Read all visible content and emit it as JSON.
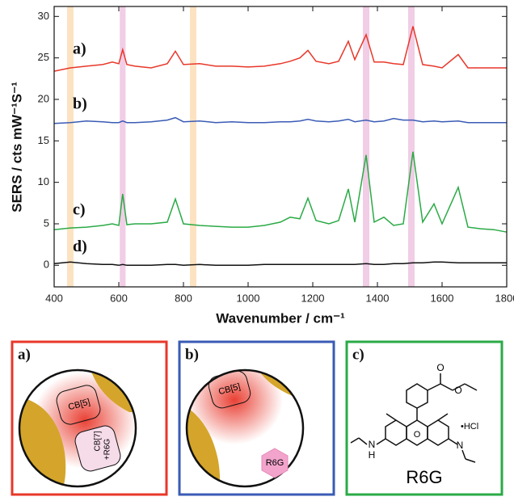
{
  "chart_data": {
    "type": "line",
    "x_label": "Wavenumber / cm⁻¹",
    "y_label": "SERS / cts mW⁻¹S⁻¹",
    "xlim": [
      400,
      1800
    ],
    "xticks": [
      400,
      600,
      800,
      1000,
      1200,
      1400,
      1600,
      1800
    ],
    "ylim": [
      -2.6,
      31.2
    ],
    "yticks": [
      0,
      5,
      10,
      15,
      20,
      25,
      30
    ],
    "bands": [
      {
        "range": [
          440,
          460
        ],
        "color": "#fbe3c2"
      },
      {
        "range": [
          820,
          840
        ],
        "color": "#fbe3c2"
      },
      {
        "range": [
          603,
          621
        ],
        "color": "#f1cde6"
      },
      {
        "range": [
          1355,
          1375
        ],
        "color": "#f1cde6"
      },
      {
        "range": [
          1495,
          1515
        ],
        "color": "#f1cde6"
      }
    ],
    "x": [
      400,
      450,
      500,
      550,
      580,
      600,
      612,
      625,
      650,
      700,
      750,
      775,
      800,
      850,
      900,
      950,
      1000,
      1050,
      1100,
      1130,
      1160,
      1185,
      1210,
      1250,
      1280,
      1310,
      1330,
      1365,
      1390,
      1420,
      1450,
      1480,
      1510,
      1540,
      1575,
      1600,
      1650,
      1680,
      1720,
      1760,
      1800
    ],
    "series": [
      {
        "name": "a)",
        "color": "#e8372a",
        "values": [
          23.4,
          23.8,
          24.0,
          24.2,
          24.5,
          24.3,
          26.0,
          24.2,
          24.0,
          23.8,
          24.3,
          25.8,
          24.2,
          24.3,
          24.0,
          24.0,
          23.9,
          24.0,
          24.3,
          24.6,
          25.0,
          25.9,
          24.6,
          24.3,
          24.6,
          27.0,
          24.8,
          27.8,
          24.5,
          24.5,
          24.3,
          24.2,
          28.8,
          24.2,
          24.0,
          23.8,
          25.4,
          23.8,
          23.8,
          23.8,
          23.8
        ]
      },
      {
        "name": "b)",
        "color": "#3a5bb5",
        "values": [
          17.1,
          17.2,
          17.4,
          17.3,
          17.2,
          17.2,
          17.4,
          17.2,
          17.2,
          17.3,
          17.5,
          17.8,
          17.3,
          17.4,
          17.2,
          17.3,
          17.2,
          17.2,
          17.3,
          17.3,
          17.4,
          17.6,
          17.4,
          17.3,
          17.4,
          17.6,
          17.3,
          17.5,
          17.3,
          17.4,
          17.7,
          17.5,
          17.5,
          17.3,
          17.4,
          17.3,
          17.4,
          17.2,
          17.2,
          17.2,
          17.2
        ]
      },
      {
        "name": "c)",
        "color": "#2aaa46",
        "values": [
          4.3,
          4.5,
          4.6,
          4.8,
          5.0,
          4.8,
          8.6,
          4.9,
          5.0,
          5.0,
          5.2,
          8.0,
          5.0,
          4.8,
          4.7,
          4.6,
          4.6,
          4.8,
          5.2,
          5.8,
          5.6,
          8.1,
          5.4,
          5.0,
          5.4,
          9.2,
          5.2,
          13.3,
          5.2,
          5.8,
          4.8,
          5.0,
          13.7,
          5.2,
          7.4,
          5.0,
          9.4,
          4.6,
          4.4,
          4.3,
          4.0
        ]
      },
      {
        "name": "d)",
        "color": "#111111",
        "values": [
          0.2,
          0.4,
          0.2,
          0.1,
          0.1,
          0.0,
          0.1,
          0.0,
          0.0,
          0.0,
          0.1,
          0.1,
          0.0,
          0.1,
          0.0,
          0.0,
          0.0,
          0.1,
          0.1,
          0.1,
          0.1,
          0.1,
          0.1,
          0.1,
          0.1,
          0.1,
          0.1,
          0.2,
          0.1,
          0.1,
          0.2,
          0.2,
          0.3,
          0.3,
          0.4,
          0.4,
          0.3,
          0.3,
          0.3,
          0.3,
          0.3
        ]
      }
    ]
  },
  "panels": [
    {
      "label": "a)",
      "texts": [
        "CB[5]",
        "CB[7]",
        "+R6G"
      ]
    },
    {
      "label": "b)",
      "texts": [
        "CB[5]",
        "R6G"
      ]
    },
    {
      "label": "c)",
      "texts": [
        "R6G",
        "•HCl",
        "H",
        "N",
        "O",
        "O"
      ]
    }
  ]
}
